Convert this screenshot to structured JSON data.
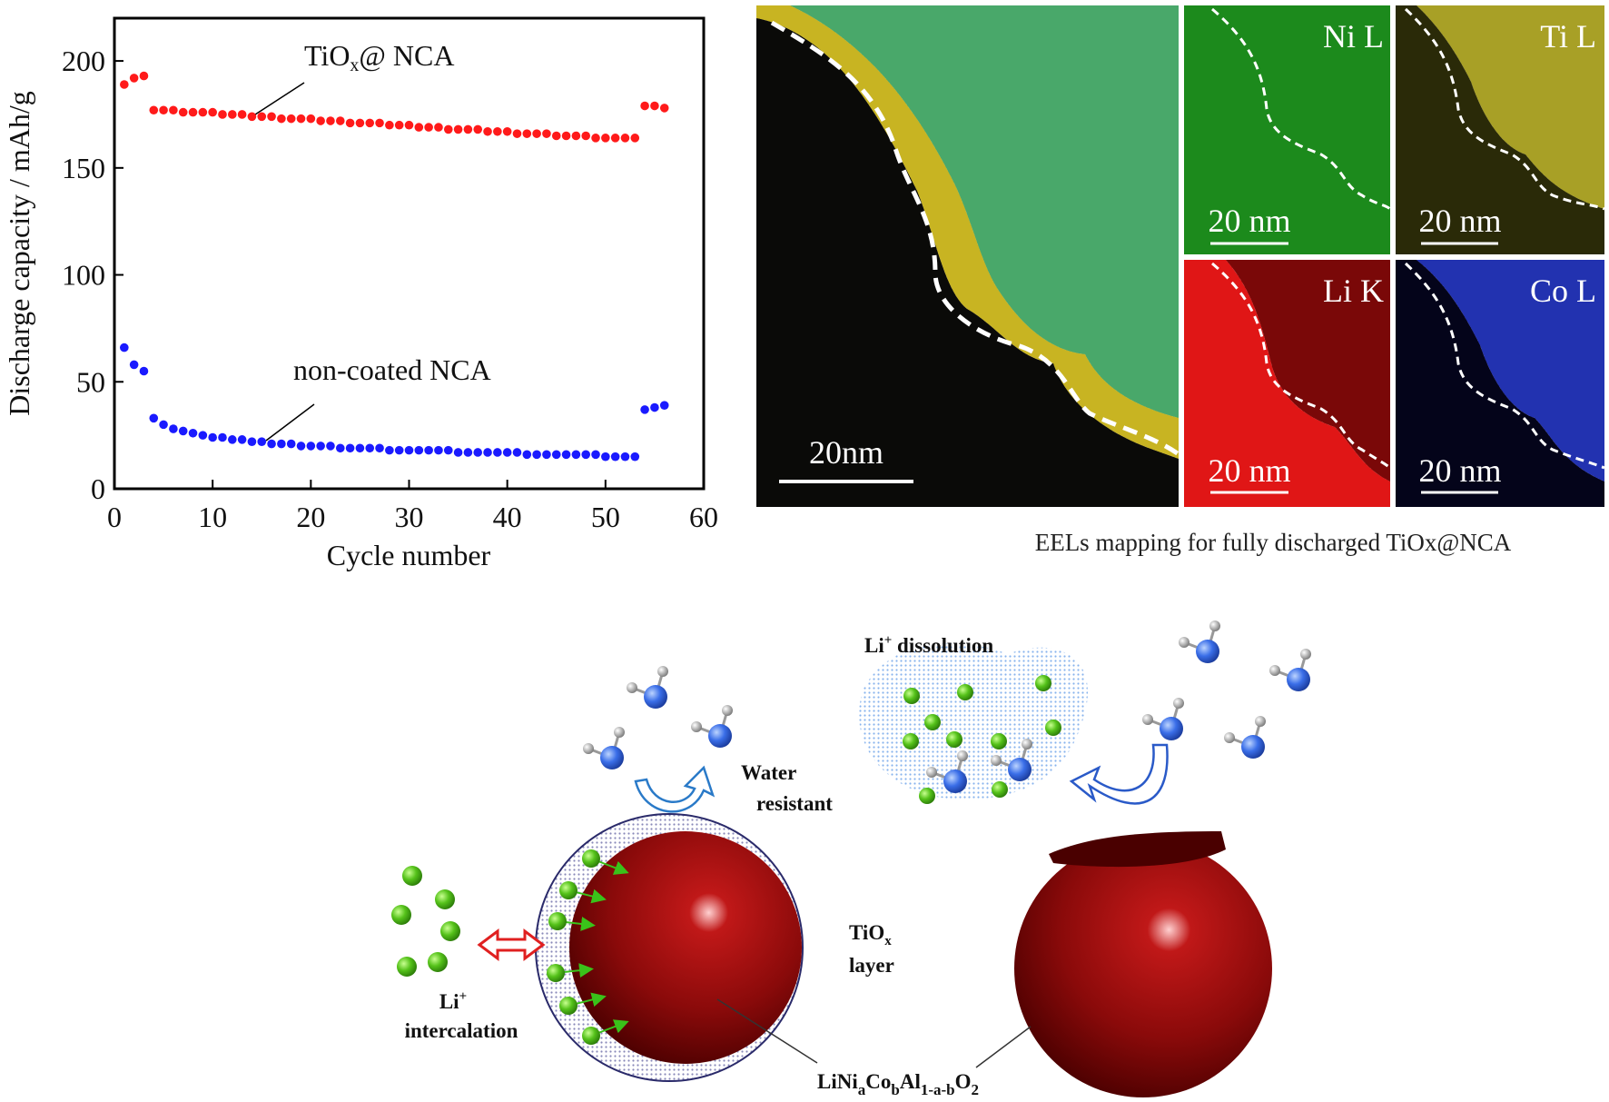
{
  "chart_data": {
    "type": "scatter",
    "xlabel": "Cycle number",
    "ylabel": "Discharge capacity / mAh/g",
    "x": [
      1,
      2,
      3,
      4,
      5,
      6,
      7,
      8,
      9,
      10,
      11,
      12,
      13,
      14,
      15,
      16,
      17,
      18,
      19,
      20,
      21,
      22,
      23,
      24,
      25,
      26,
      27,
      28,
      29,
      30,
      31,
      32,
      33,
      34,
      35,
      36,
      37,
      38,
      39,
      40,
      41,
      42,
      43,
      44,
      45,
      46,
      47,
      48,
      49,
      50,
      51,
      52,
      53,
      54,
      55,
      56
    ],
    "series": [
      {
        "color": "#ff1a1a",
        "values": [
          189,
          192,
          193,
          177,
          177,
          177,
          176,
          176,
          176,
          176,
          175,
          175,
          175,
          174,
          174,
          174,
          173,
          173,
          173,
          173,
          172,
          172,
          172,
          171,
          171,
          171,
          171,
          170,
          170,
          170,
          169,
          169,
          169,
          168,
          168,
          168,
          168,
          167,
          167,
          167,
          166,
          166,
          166,
          166,
          165,
          165,
          165,
          165,
          164,
          164,
          164,
          164,
          164,
          179,
          179,
          178
        ]
      },
      {
        "color": "#1a1aff",
        "values": [
          66,
          58,
          55,
          33,
          30,
          28,
          27,
          26,
          25,
          24,
          24,
          23,
          23,
          22,
          22,
          21,
          21,
          21,
          20,
          20,
          20,
          20,
          19,
          19,
          19,
          19,
          19,
          18,
          18,
          18,
          18,
          18,
          18,
          18,
          17,
          17,
          17,
          17,
          17,
          17,
          17,
          16,
          16,
          16,
          16,
          16,
          16,
          16,
          16,
          15,
          15,
          15,
          15,
          37,
          38,
          39
        ]
      }
    ],
    "annotations": [
      [
        "TiO",
        "x",
        "@ NCA"
      ],
      [
        "non-coated NCA"
      ]
    ],
    "xlim": [
      0,
      60
    ],
    "xticks": [
      0,
      10,
      20,
      30,
      40,
      50,
      60
    ],
    "ylim": [
      0,
      220
    ],
    "yticks": [
      0,
      50,
      100,
      150,
      200
    ]
  },
  "eels": {
    "caption": "EELs mapping for  fully discharged TiOx@NCA",
    "main_scale": "20nm",
    "panels": [
      {
        "label": "Ni L",
        "scale": "20 nm"
      },
      {
        "label": "Ti L",
        "scale": "20 nm"
      },
      {
        "label": "Li K",
        "scale": "20 nm"
      },
      {
        "label": "Co L",
        "scale": "20 nm"
      }
    ]
  },
  "schematic": {
    "dissolution": [
      "Li",
      "+",
      " dissolution"
    ],
    "water": [
      "Water",
      "resistant"
    ],
    "layer": [
      [
        "TiO",
        "x"
      ],
      "layer"
    ],
    "intercalation": [
      [
        "Li",
        "+"
      ],
      "intercalation"
    ],
    "formula": [
      "LiNi",
      "a",
      "Co",
      "b",
      "Al",
      "1-a-b",
      "O",
      "2"
    ]
  }
}
